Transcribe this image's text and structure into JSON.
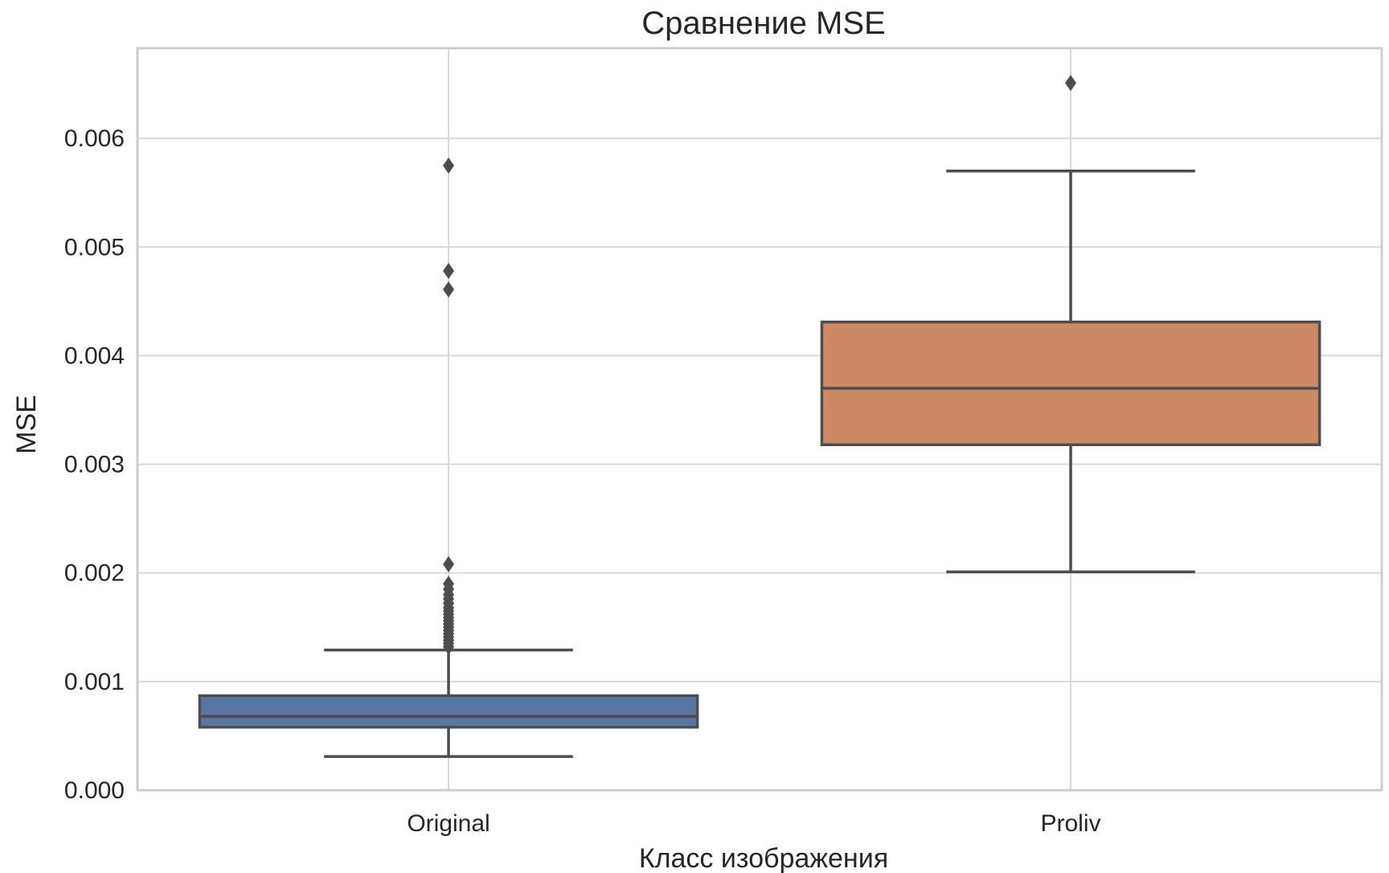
{
  "chart_data": {
    "type": "box",
    "title": "Сравнение MSE",
    "xlabel": "Класс изображения",
    "ylabel": "MSE",
    "ylim": [
      0,
      0.00683
    ],
    "yticks": [
      "0.000",
      "0.001",
      "0.002",
      "0.003",
      "0.004",
      "0.005",
      "0.006"
    ],
    "yticks_values": [
      0,
      0.001,
      0.002,
      0.003,
      0.004,
      0.005,
      0.006
    ],
    "grid": true,
    "categories": [
      "Original",
      "Proliv"
    ],
    "boxes": [
      {
        "category": "Original",
        "color": "#5875a4",
        "whisker_low": 0.00031,
        "q1": 0.00058,
        "median": 0.00068,
        "q3": 0.00087,
        "whisker_high": 0.00129,
        "outliers": [
          0.00575,
          0.00478,
          0.00461,
          0.00208,
          0.0019,
          0.00185,
          0.0018,
          0.00176,
          0.00172,
          0.00168,
          0.00165,
          0.00162,
          0.00159,
          0.00156,
          0.00153,
          0.0015,
          0.00147,
          0.00144,
          0.00141,
          0.00138,
          0.00135,
          0.00132
        ]
      },
      {
        "category": "Proliv",
        "color": "#cc8963",
        "whisker_low": 0.00201,
        "q1": 0.00318,
        "median": 0.0037,
        "q3": 0.00431,
        "whisker_high": 0.0057,
        "outliers": [
          0.00651
        ]
      }
    ]
  }
}
